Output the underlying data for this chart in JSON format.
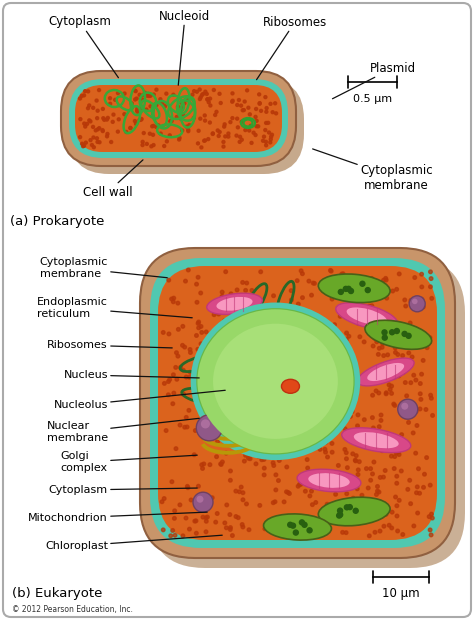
{
  "background_color": "#ffffff",
  "prokaryote_label": "(a) Prokaryote",
  "eukaryote_label": "(b) Eukaryote",
  "copyright": "© 2012 Pearson Education, Inc.",
  "scale_bar_1": "0.5 μm",
  "scale_bar_2": "10 μm",
  "colors": {
    "cell_outer_tan": "#c8956a",
    "cell_outer_tan2": "#d4a57a",
    "cell_shadow": "#a07040",
    "cyan_membrane": "#50c8b0",
    "orange_cytoplasm": "#e06820",
    "orange_cytoplasm2": "#d05818",
    "nucleoid_green": "#38a838",
    "plasmid_green": "#30a030",
    "ribosome_dot": "#b83808",
    "nucleus_green_outer": "#68b848",
    "nucleus_green_inner": "#98d868",
    "nucleus_green_light": "#b8e888",
    "nucleolus_orange": "#e04818",
    "er_dark_green": "#286828",
    "chloroplast_green": "#68a828",
    "chloroplast_dot": "#286010",
    "mito_pink": "#d84888",
    "mito_pink_light": "#f070a8",
    "mito_pink_inner": "#f898c0",
    "golgi_yellow": "#b89808",
    "vesicle_purple": "#905888",
    "vesicle_purple_light": "#b878a8",
    "text_black": "#000000",
    "arrow_black": "#111111",
    "scale_bar_black": "#000000",
    "border_gray": "#aaaaaa"
  }
}
